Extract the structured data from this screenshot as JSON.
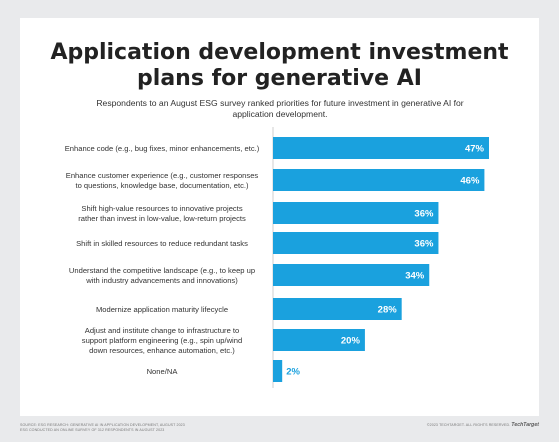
{
  "chart_data": {
    "type": "bar",
    "orientation": "horizontal",
    "title": "Application development investment plans for generative AI",
    "subtitle": "Respondents to an August ESG survey ranked priorities for future investment in generative AI for application development.",
    "categories": [
      [
        "Enhance code (e.g., bug fixes, minor enhancements, etc.)"
      ],
      [
        "Enhance customer experience (e.g., customer responses",
        "to questions, knowledge base, documentation, etc.)"
      ],
      [
        "Shift high-value resources to innovative projects",
        "rather than invest in low-value, low-return projects"
      ],
      [
        "Shift in skilled resources to reduce redundant tasks"
      ],
      [
        "Understand the competitive landscape (e.g., to keep up",
        "with industry advancements and innovations)"
      ],
      [
        "Modernize application maturity lifecycle"
      ],
      [
        "Adjust and institute change to infrastructure to",
        "support platform engineering (e.g., spin up/wind",
        "down resources, enhance automation, etc.)"
      ],
      [
        "None/NA"
      ]
    ],
    "values": [
      47,
      46,
      36,
      36,
      34,
      28,
      20,
      2
    ],
    "value_labels": [
      "47%",
      "46%",
      "36%",
      "36%",
      "34%",
      "28%",
      "20%",
      "2%"
    ],
    "xlim": [
      0,
      47
    ],
    "grid": false,
    "colors": {
      "bar": "#1aa1de",
      "label_inside": "#ffffff",
      "label_outside": "#1aa1de",
      "axis": "#cfcfcf"
    }
  },
  "footer": {
    "source": "SOURCE: ESG RESEARCH: GENERATIVE AI IN APPLICATION DEVELOPMENT, AUGUST 2023",
    "note": "ESG CONDUCTED AN ONLINE SURVEY OF 312 RESPONDENTS IN AUGUST 2023",
    "copyright": "©2023 TECHTARGET. ALL RIGHTS RESERVED.",
    "brand": "TechTarget"
  }
}
